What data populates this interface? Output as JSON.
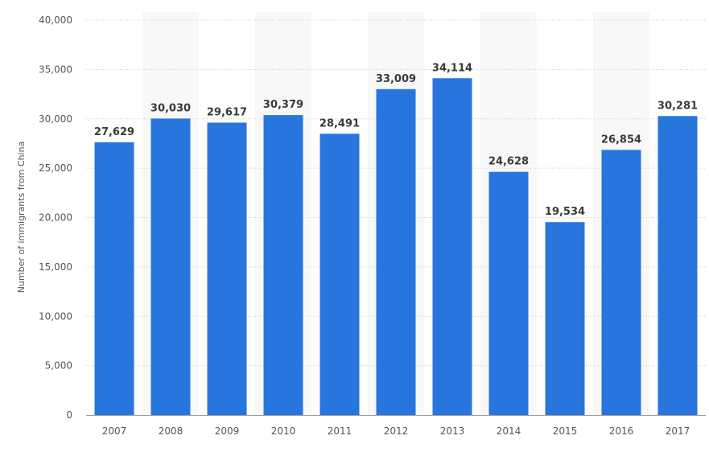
{
  "chart_data": {
    "type": "bar",
    "title": "",
    "xlabel": "",
    "ylabel": "Number of immigrants from China",
    "categories": [
      "2007",
      "2008",
      "2009",
      "2010",
      "2011",
      "2012",
      "2013",
      "2014",
      "2015",
      "2016",
      "2017"
    ],
    "values": [
      27629,
      30030,
      29617,
      30379,
      28491,
      33009,
      34114,
      24628,
      19534,
      26854,
      30281
    ],
    "value_labels": [
      "27,629",
      "30,030",
      "29,617",
      "30,379",
      "28,491",
      "33,009",
      "34,114",
      "24,628",
      "19,534",
      "26,854",
      "30,281"
    ],
    "ylim": [
      0,
      40000
    ],
    "yticks": [
      0,
      5000,
      10000,
      15000,
      20000,
      25000,
      30000,
      35000,
      40000
    ],
    "ytick_labels": [
      "0",
      "5,000",
      "10,000",
      "15,000",
      "20,000",
      "25,000",
      "30,000",
      "35,000",
      "40,000"
    ],
    "grid": true,
    "colors": {
      "bar": "#2876dd",
      "band": "#f8f8f8",
      "grid": "#cccccc"
    }
  }
}
